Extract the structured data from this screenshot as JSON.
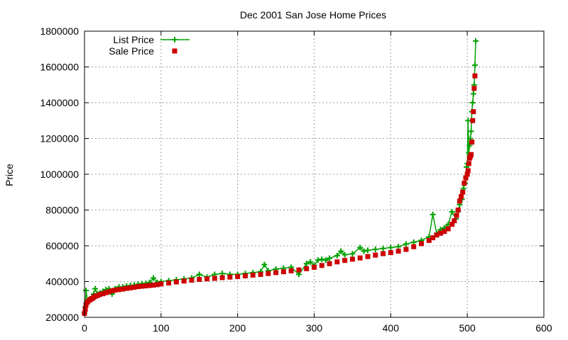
{
  "chart_data": {
    "type": "scatter",
    "title": "Dec 2001 San Jose Home Prices",
    "xlabel": "",
    "ylabel": "Price",
    "xlim": [
      0,
      600
    ],
    "ylim": [
      200000,
      1800000
    ],
    "x_ticks": [
      0,
      100,
      200,
      300,
      400,
      500,
      600
    ],
    "y_ticks": [
      200000,
      400000,
      600000,
      800000,
      1000000,
      1200000,
      1400000,
      1600000,
      1800000
    ],
    "grid": true,
    "legend_position": "top-left",
    "series": [
      {
        "name": "List Price",
        "style": "linespoints",
        "marker": "plus",
        "color": "#00a000",
        "points": [
          [
            0,
            225000
          ],
          [
            1,
            258000
          ],
          [
            2,
            350000
          ],
          [
            4,
            290000
          ],
          [
            6,
            300000
          ],
          [
            8,
            300000
          ],
          [
            10,
            315000
          ],
          [
            12,
            330000
          ],
          [
            14,
            360000
          ],
          [
            17,
            330000
          ],
          [
            20,
            335000
          ],
          [
            24,
            345000
          ],
          [
            28,
            355000
          ],
          [
            32,
            360000
          ],
          [
            36,
            330000
          ],
          [
            40,
            360000
          ],
          [
            45,
            370000
          ],
          [
            50,
            370000
          ],
          [
            55,
            375000
          ],
          [
            60,
            378000
          ],
          [
            65,
            380000
          ],
          [
            70,
            385000
          ],
          [
            75,
            388000
          ],
          [
            80,
            390000
          ],
          [
            85,
            395000
          ],
          [
            90,
            420000
          ],
          [
            95,
            395000
          ],
          [
            100,
            400000
          ],
          [
            110,
            405000
          ],
          [
            120,
            410000
          ],
          [
            130,
            415000
          ],
          [
            140,
            420000
          ],
          [
            150,
            440000
          ],
          [
            160,
            425000
          ],
          [
            170,
            440000
          ],
          [
            180,
            445000
          ],
          [
            190,
            440000
          ],
          [
            200,
            440000
          ],
          [
            210,
            445000
          ],
          [
            220,
            450000
          ],
          [
            230,
            455000
          ],
          [
            235,
            495000
          ],
          [
            240,
            460000
          ],
          [
            250,
            470000
          ],
          [
            260,
            475000
          ],
          [
            270,
            480000
          ],
          [
            280,
            440000
          ],
          [
            290,
            500000
          ],
          [
            295,
            510000
          ],
          [
            300,
            490000
          ],
          [
            305,
            520000
          ],
          [
            310,
            525000
          ],
          [
            315,
            520000
          ],
          [
            320,
            530000
          ],
          [
            330,
            545000
          ],
          [
            335,
            570000
          ],
          [
            340,
            550000
          ],
          [
            350,
            555000
          ],
          [
            360,
            590000
          ],
          [
            365,
            570000
          ],
          [
            370,
            575000
          ],
          [
            380,
            580000
          ],
          [
            390,
            585000
          ],
          [
            400,
            590000
          ],
          [
            410,
            595000
          ],
          [
            420,
            610000
          ],
          [
            430,
            620000
          ],
          [
            440,
            630000
          ],
          [
            450,
            650000
          ],
          [
            455,
            775000
          ],
          [
            460,
            670000
          ],
          [
            465,
            690000
          ],
          [
            470,
            700000
          ],
          [
            475,
            720000
          ],
          [
            480,
            790000
          ],
          [
            485,
            750000
          ],
          [
            488,
            790000
          ],
          [
            490,
            830000
          ],
          [
            493,
            860000
          ],
          [
            495,
            920000
          ],
          [
            497,
            950000
          ],
          [
            499,
            1040000
          ],
          [
            500,
            1060000
          ],
          [
            501,
            1300000
          ],
          [
            502,
            1120000
          ],
          [
            503,
            1160000
          ],
          [
            504,
            1200000
          ],
          [
            505,
            1240000
          ],
          [
            506,
            1350000
          ],
          [
            507,
            1400000
          ],
          [
            508,
            1450000
          ],
          [
            509,
            1500000
          ],
          [
            510,
            1610000
          ],
          [
            511,
            1745000
          ]
        ]
      },
      {
        "name": "Sale Price",
        "style": "points",
        "marker": "square",
        "color": "#cc0000",
        "points": [
          [
            0,
            222000
          ],
          [
            1,
            245000
          ],
          [
            2,
            270000
          ],
          [
            4,
            285000
          ],
          [
            6,
            295000
          ],
          [
            8,
            300000
          ],
          [
            10,
            305000
          ],
          [
            12,
            312000
          ],
          [
            14,
            318000
          ],
          [
            17,
            322000
          ],
          [
            20,
            328000
          ],
          [
            24,
            332000
          ],
          [
            28,
            338000
          ],
          [
            32,
            343000
          ],
          [
            36,
            348000
          ],
          [
            40,
            352000
          ],
          [
            45,
            355000
          ],
          [
            50,
            358000
          ],
          [
            55,
            362000
          ],
          [
            60,
            365000
          ],
          [
            65,
            368000
          ],
          [
            70,
            372000
          ],
          [
            75,
            374000
          ],
          [
            80,
            376000
          ],
          [
            85,
            378000
          ],
          [
            90,
            380000
          ],
          [
            95,
            383000
          ],
          [
            100,
            387000
          ],
          [
            110,
            392000
          ],
          [
            120,
            398000
          ],
          [
            130,
            403000
          ],
          [
            140,
            408000
          ],
          [
            150,
            412000
          ],
          [
            160,
            415000
          ],
          [
            170,
            418000
          ],
          [
            180,
            422000
          ],
          [
            190,
            425000
          ],
          [
            200,
            428000
          ],
          [
            210,
            432000
          ],
          [
            220,
            436000
          ],
          [
            230,
            440000
          ],
          [
            240,
            445000
          ],
          [
            250,
            450000
          ],
          [
            260,
            455000
          ],
          [
            270,
            460000
          ],
          [
            280,
            465000
          ],
          [
            290,
            472000
          ],
          [
            300,
            480000
          ],
          [
            310,
            490000
          ],
          [
            320,
            500000
          ],
          [
            330,
            510000
          ],
          [
            340,
            518000
          ],
          [
            350,
            525000
          ],
          [
            360,
            532000
          ],
          [
            370,
            540000
          ],
          [
            380,
            548000
          ],
          [
            390,
            556000
          ],
          [
            400,
            562000
          ],
          [
            410,
            570000
          ],
          [
            420,
            580000
          ],
          [
            430,
            595000
          ],
          [
            440,
            612000
          ],
          [
            450,
            630000
          ],
          [
            455,
            645000
          ],
          [
            460,
            660000
          ],
          [
            465,
            670000
          ],
          [
            470,
            680000
          ],
          [
            475,
            695000
          ],
          [
            480,
            720000
          ],
          [
            483,
            740000
          ],
          [
            486,
            770000
          ],
          [
            488,
            800000
          ],
          [
            490,
            850000
          ],
          [
            492,
            875000
          ],
          [
            494,
            900000
          ],
          [
            496,
            950000
          ],
          [
            498,
            980000
          ],
          [
            500,
            1000000
          ],
          [
            501,
            1020000
          ],
          [
            502,
            1060000
          ],
          [
            503,
            1090000
          ],
          [
            504,
            1100000
          ],
          [
            505,
            1110000
          ],
          [
            506,
            1180000
          ],
          [
            507,
            1300000
          ],
          [
            508,
            1350000
          ],
          [
            509,
            1480000
          ],
          [
            510,
            1550000
          ]
        ]
      }
    ]
  }
}
